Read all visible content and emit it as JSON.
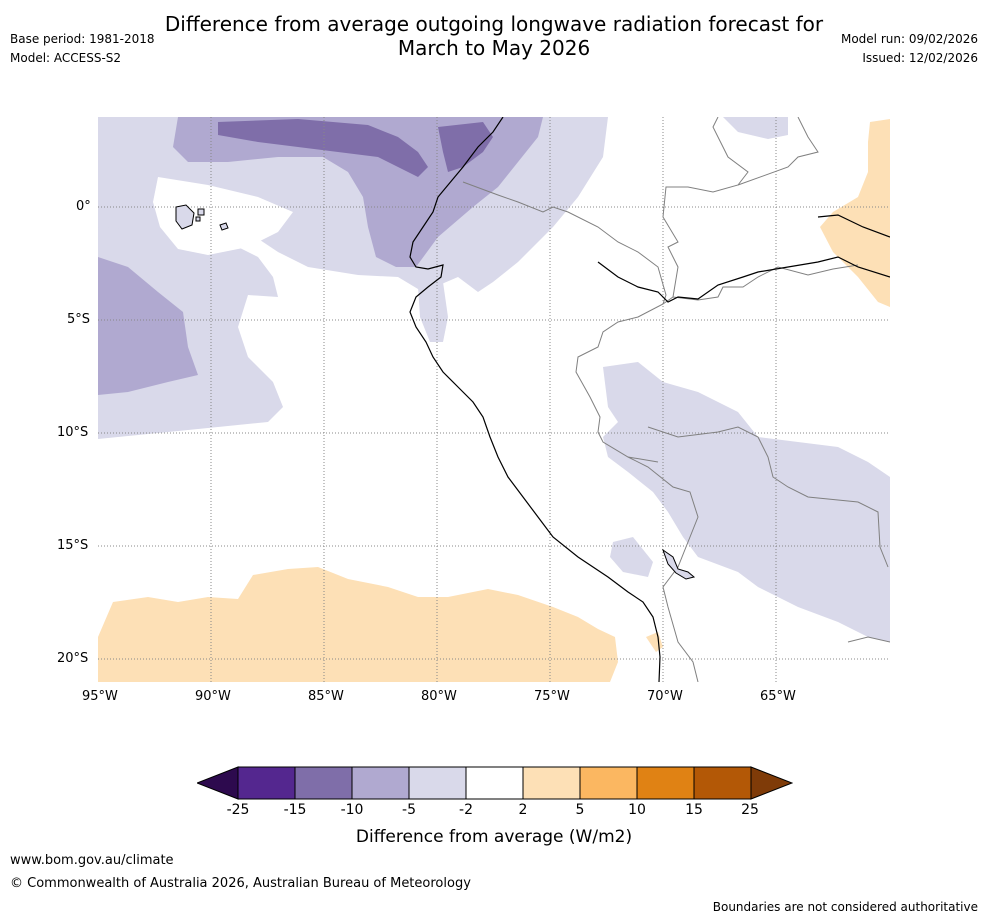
{
  "header": {
    "title_line1": "Difference from average outgoing longwave radiation forecast for",
    "title_line2": "March to May 2026",
    "base_period": "Base period: 1981-2018",
    "model": "Model: ACCESS-S2",
    "model_run": "Model run: 09/02/2026",
    "issued": "Issued: 12/02/2026"
  },
  "map": {
    "lat_labels": [
      "0°",
      "5°S",
      "10°S",
      "15°S",
      "20°S"
    ],
    "lon_labels": [
      "95°W",
      "90°W",
      "85°W",
      "80°W",
      "75°W",
      "70°W",
      "65°W"
    ]
  },
  "colorbar": {
    "ticks": [
      "-25",
      "-15",
      "-10",
      "-5",
      "-2",
      "2",
      "5",
      "10",
      "15",
      "25"
    ],
    "colors": [
      "#2d0a4e",
      "#54278f",
      "#7f6ea9",
      "#b0a9d0",
      "#d9d9ea",
      "#ffffff",
      "#fde0b6",
      "#fbb761",
      "#e08214",
      "#b35806",
      "#7f3b08"
    ],
    "title": "Difference from average (W/m2)"
  },
  "footer": {
    "url": "www.bom.gov.au/climate",
    "copyright": "© Commonwealth of Australia 2026, Australian Bureau of Meteorology",
    "disclaimer": "Boundaries are not considered authoritative"
  }
}
